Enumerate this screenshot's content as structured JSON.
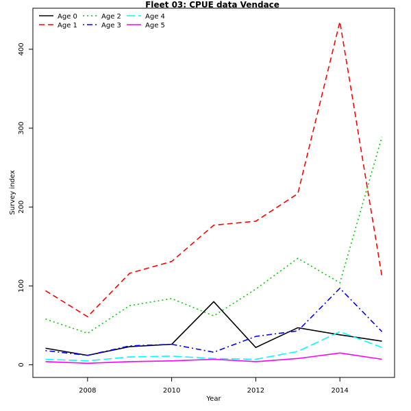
{
  "chart_data": {
    "type": "line",
    "title": "Fleet 03:  CPUE data Vendace",
    "xlabel": "Year",
    "ylabel": "Survey index",
    "x": [
      2007,
      2008,
      2009,
      2010,
      2011,
      2012,
      2013,
      2014,
      2015
    ],
    "xticks": [
      2008,
      2010,
      2012,
      2014
    ],
    "yticks": [
      0,
      100,
      200,
      300,
      400
    ],
    "xlim": [
      2006.7,
      2015.3
    ],
    "ylim": [
      -16,
      452
    ],
    "grid": false,
    "legend_position": "top-left",
    "series": [
      {
        "name": "Age 0",
        "color": "#000000",
        "dash": "solid",
        "values": [
          21,
          12,
          23,
          26,
          80,
          22,
          47,
          38,
          30
        ]
      },
      {
        "name": "Age 1",
        "color": "#ff0000",
        "dash": "dashed",
        "values": [
          94,
          61,
          116,
          131,
          177,
          182,
          217,
          435,
          112
        ]
      },
      {
        "name": "Age 2",
        "color": "#00cd00",
        "dash": "dotted",
        "values": [
          58,
          40,
          75,
          84,
          62,
          96,
          135,
          104,
          289
        ]
      },
      {
        "name": "Age 3",
        "color": "#0000ff",
        "dash": "dotdash",
        "values": [
          18,
          12,
          24,
          26,
          16,
          36,
          43,
          97,
          42
        ]
      },
      {
        "name": "Age 4",
        "color": "#00ffff",
        "dash": "longdash",
        "values": [
          7,
          5,
          10,
          11,
          8,
          7,
          17,
          42,
          22
        ]
      },
      {
        "name": "Age 5",
        "color": "#ff00ff",
        "dash": "solid",
        "values": [
          4,
          2,
          4,
          5,
          7,
          4,
          8,
          15,
          7
        ]
      }
    ]
  }
}
